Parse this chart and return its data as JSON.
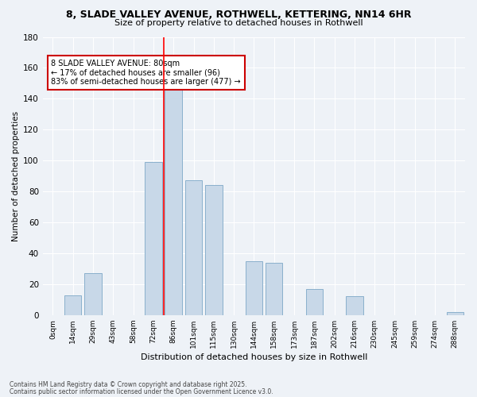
{
  "title_line1": "8, SLADE VALLEY AVENUE, ROTHWELL, KETTERING, NN14 6HR",
  "title_line2": "Size of property relative to detached houses in Rothwell",
  "xlabel": "Distribution of detached houses by size in Rothwell",
  "ylabel": "Number of detached properties",
  "bar_labels": [
    "0sqm",
    "14sqm",
    "29sqm",
    "43sqm",
    "58sqm",
    "72sqm",
    "86sqm",
    "101sqm",
    "115sqm",
    "130sqm",
    "144sqm",
    "158sqm",
    "173sqm",
    "187sqm",
    "202sqm",
    "216sqm",
    "230sqm",
    "245sqm",
    "259sqm",
    "274sqm",
    "288sqm"
  ],
  "bar_values": [
    0,
    13,
    27,
    0,
    0,
    99,
    146,
    87,
    84,
    0,
    35,
    34,
    0,
    17,
    0,
    12,
    0,
    0,
    0,
    0,
    2
  ],
  "bar_color": "#c8d8e8",
  "bar_edgecolor": "#8ab0cc",
  "annotation_title": "8 SLADE VALLEY AVENUE: 80sqm",
  "annotation_line1": "← 17% of detached houses are smaller (96)",
  "annotation_line2": "83% of semi-detached houses are larger (477) →",
  "annotation_box_color": "#ffffff",
  "annotation_border_color": "#cc0000",
  "highlight_bin": 6,
  "ylim": [
    0,
    180
  ],
  "yticks": [
    0,
    20,
    40,
    60,
    80,
    100,
    120,
    140,
    160,
    180
  ],
  "footer_line1": "Contains HM Land Registry data © Crown copyright and database right 2025.",
  "footer_line2": "Contains public sector information licensed under the Open Government Licence v3.0.",
  "bg_color": "#eef2f7",
  "grid_color": "#ffffff"
}
